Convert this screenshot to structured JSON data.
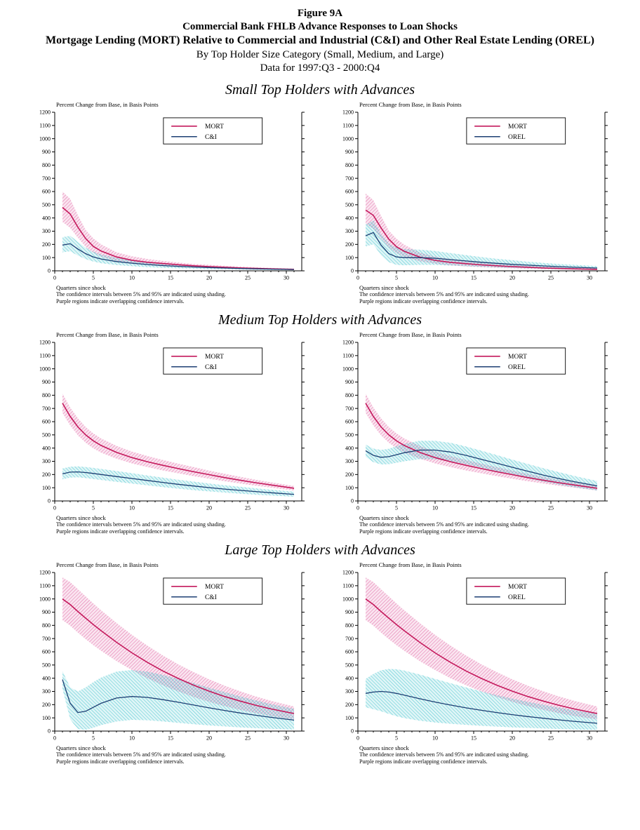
{
  "header": {
    "line1": "Figure 9A",
    "line2": "Commercial Bank FHLB Advance Responses to Loan Shocks",
    "line3": "Mortgage Lending (MORT) Relative to Commercial and Industrial (C&I) and Other Real Estate Lending (OREL)",
    "line4": "By Top Holder Size Category (Small, Medium, and Large)",
    "line5": "Data for 1997:Q3 - 2000:Q4"
  },
  "sections": [
    {
      "title": "Small Top Holders with Advances"
    },
    {
      "title": "Medium Top Holders with Advances"
    },
    {
      "title": "Large Top Holders with Advances"
    }
  ],
  "chart_common": {
    "ylabel_top": "Percent Change from Base, in Basis Points",
    "xlabel": "Quarters since shock",
    "footnote1": "The confidence intervals between 5% and 95% are indicated using shading.",
    "footnote2": "Purple regions indicate overlapping confidence intervals.",
    "ylim": [
      0,
      1200
    ],
    "xlim": [
      0,
      32
    ],
    "yticks": [
      0,
      100,
      200,
      300,
      400,
      500,
      600,
      700,
      800,
      900,
      1000,
      1100,
      1200
    ],
    "xticks": [
      0,
      5,
      10,
      15,
      20,
      25,
      30
    ],
    "grid": false,
    "legend_position": "upper-center-right"
  },
  "colors": {
    "mort_line": "#c4195c",
    "mort_band": "#e05f9f",
    "other_line": "#1d3f73",
    "other_band": "#3ec3cb",
    "overlap_note": "#8a5fa8",
    "axis": "#000000"
  },
  "chart_data": [
    {
      "type": "line",
      "section": "Small Top Holders with Advances",
      "x": [
        1,
        2,
        3,
        4,
        5,
        6,
        8,
        10,
        12,
        14,
        16,
        18,
        20,
        22,
        24,
        26,
        28,
        31
      ],
      "series": [
        {
          "name": "MORT",
          "center": [
            480,
            430,
            330,
            245,
            185,
            150,
            105,
            80,
            65,
            55,
            46,
            38,
            32,
            27,
            22,
            18,
            15,
            11
          ],
          "upper": [
            600,
            545,
            420,
            310,
            245,
            200,
            140,
            110,
            90,
            75,
            62,
            52,
            45,
            38,
            32,
            27,
            22,
            17
          ],
          "lower": [
            370,
            325,
            250,
            182,
            136,
            108,
            74,
            55,
            43,
            35,
            29,
            24,
            20,
            17,
            14,
            11,
            9,
            7
          ]
        },
        {
          "name": "C&I",
          "center": [
            195,
            205,
            165,
            130,
            105,
            90,
            70,
            58,
            48,
            40,
            34,
            29,
            25,
            21,
            18,
            15,
            13,
            10
          ],
          "upper": [
            255,
            265,
            220,
            175,
            145,
            125,
            98,
            82,
            68,
            58,
            49,
            42,
            36,
            31,
            26,
            22,
            19,
            15
          ],
          "lower": [
            140,
            148,
            115,
            88,
            70,
            58,
            44,
            35,
            28,
            23,
            19,
            16,
            13,
            11,
            9,
            8,
            6,
            5
          ]
        }
      ]
    },
    {
      "type": "line",
      "section": "Small Top Holders with Advances",
      "x": [
        1,
        2,
        3,
        4,
        5,
        6,
        8,
        10,
        12,
        14,
        16,
        18,
        20,
        22,
        24,
        26,
        28,
        31
      ],
      "series": [
        {
          "name": "MORT",
          "center": [
            460,
            420,
            325,
            240,
            182,
            148,
            104,
            79,
            64,
            54,
            45,
            38,
            32,
            27,
            22,
            18,
            15,
            11
          ],
          "upper": [
            585,
            535,
            415,
            305,
            242,
            198,
            138,
            108,
            88,
            74,
            61,
            52,
            44,
            38,
            32,
            26,
            22,
            17
          ],
          "lower": [
            355,
            318,
            245,
            178,
            133,
            106,
            72,
            54,
            42,
            34,
            28,
            23,
            19,
            16,
            13,
            11,
            9,
            7
          ]
        },
        {
          "name": "OREL",
          "center": [
            265,
            290,
            195,
            130,
            105,
            100,
            100,
            95,
            85,
            75,
            65,
            57,
            49,
            43,
            37,
            32,
            27,
            21
          ],
          "upper": [
            350,
            380,
            280,
            205,
            175,
            165,
            160,
            150,
            134,
            119,
            104,
            91,
            80,
            69,
            60,
            52,
            45,
            36
          ],
          "lower": [
            185,
            200,
            118,
            65,
            45,
            42,
            45,
            45,
            40,
            35,
            30,
            26,
            22,
            19,
            16,
            13,
            11,
            9
          ]
        }
      ]
    },
    {
      "type": "line",
      "section": "Medium Top Holders with Advances",
      "x": [
        1,
        2,
        3,
        4,
        5,
        6,
        8,
        10,
        12,
        14,
        16,
        18,
        20,
        22,
        24,
        26,
        28,
        31
      ],
      "series": [
        {
          "name": "MORT",
          "center": [
            740,
            640,
            560,
            500,
            455,
            420,
            368,
            328,
            297,
            270,
            245,
            221,
            199,
            177,
            157,
            138,
            121,
            96
          ],
          "upper": [
            812,
            708,
            625,
            560,
            511,
            473,
            417,
            374,
            340,
            310,
            282,
            256,
            230,
            206,
            183,
            161,
            141,
            113
          ],
          "lower": [
            666,
            572,
            496,
            441,
            398,
            366,
            320,
            284,
            256,
            231,
            209,
            188,
            168,
            149,
            132,
            116,
            101,
            79
          ]
        },
        {
          "name": "C&I",
          "center": [
            205,
            218,
            220,
            215,
            208,
            200,
            185,
            170,
            155,
            140,
            126,
            113,
            101,
            90,
            80,
            71,
            62,
            50
          ],
          "upper": [
            246,
            259,
            262,
            257,
            250,
            242,
            226,
            210,
            193,
            177,
            161,
            146,
            132,
            119,
            107,
            96,
            85,
            70
          ],
          "lower": [
            164,
            177,
            179,
            173,
            166,
            159,
            145,
            131,
            118,
            105,
            93,
            82,
            72,
            63,
            55,
            47,
            41,
            32
          ]
        }
      ]
    },
    {
      "type": "line",
      "section": "Medium Top Holders with Advances",
      "x": [
        1,
        2,
        3,
        4,
        5,
        6,
        8,
        10,
        12,
        14,
        16,
        18,
        20,
        22,
        24,
        26,
        28,
        31
      ],
      "series": [
        {
          "name": "MORT",
          "center": [
            740,
            640,
            560,
            500,
            455,
            420,
            368,
            328,
            297,
            270,
            245,
            221,
            199,
            177,
            157,
            138,
            121,
            96
          ],
          "upper": [
            812,
            708,
            625,
            560,
            511,
            473,
            417,
            374,
            340,
            310,
            282,
            256,
            230,
            206,
            183,
            161,
            141,
            113
          ],
          "lower": [
            666,
            572,
            496,
            441,
            398,
            366,
            320,
            284,
            256,
            231,
            209,
            188,
            168,
            149,
            132,
            116,
            101,
            79
          ]
        },
        {
          "name": "OREL",
          "center": [
            380,
            345,
            330,
            335,
            350,
            365,
            385,
            385,
            370,
            345,
            315,
            285,
            255,
            225,
            196,
            170,
            146,
            114
          ],
          "upper": [
            427,
            396,
            386,
            395,
            414,
            432,
            455,
            455,
            440,
            412,
            380,
            347,
            313,
            280,
            248,
            218,
            190,
            151
          ],
          "lower": [
            334,
            294,
            276,
            278,
            289,
            300,
            316,
            316,
            300,
            278,
            252,
            224,
            197,
            171,
            146,
            124,
            104,
            79
          ]
        }
      ]
    },
    {
      "type": "line",
      "section": "Large Top Holders with Advances",
      "x": [
        1,
        2,
        3,
        4,
        5,
        6,
        8,
        10,
        12,
        14,
        16,
        18,
        20,
        22,
        24,
        26,
        28,
        31
      ],
      "series": [
        {
          "name": "MORT",
          "center": [
            1000,
            958,
            905,
            855,
            806,
            760,
            672,
            592,
            520,
            455,
            398,
            347,
            302,
            262,
            227,
            196,
            168,
            133
          ],
          "upper": [
            1163,
            1128,
            1074,
            1020,
            966,
            915,
            818,
            728,
            646,
            572,
            505,
            446,
            392,
            344,
            301,
            263,
            229,
            186
          ],
          "lower": [
            840,
            798,
            745,
            696,
            650,
            608,
            530,
            462,
            400,
            347,
            300,
            258,
            221,
            189,
            161,
            136,
            114,
            88
          ]
        },
        {
          "name": "C&I",
          "center": [
            390,
            210,
            140,
            150,
            180,
            210,
            250,
            262,
            255,
            238,
            218,
            197,
            176,
            156,
            137,
            120,
            104,
            83
          ],
          "upper": [
            455,
            330,
            300,
            330,
            370,
            405,
            450,
            462,
            450,
            425,
            395,
            362,
            328,
            295,
            263,
            233,
            205,
            168
          ],
          "lower": [
            320,
            90,
            15,
            10,
            25,
            45,
            72,
            85,
            82,
            73,
            62,
            52,
            43,
            35,
            28,
            22,
            17,
            11
          ]
        }
      ]
    },
    {
      "type": "line",
      "section": "Large Top Holders with Advances",
      "x": [
        1,
        2,
        3,
        4,
        5,
        6,
        8,
        10,
        12,
        14,
        16,
        18,
        20,
        22,
        24,
        26,
        28,
        31
      ],
      "series": [
        {
          "name": "MORT",
          "center": [
            1000,
            958,
            905,
            855,
            806,
            760,
            672,
            592,
            520,
            455,
            398,
            347,
            302,
            262,
            227,
            196,
            168,
            133
          ],
          "upper": [
            1163,
            1128,
            1074,
            1020,
            966,
            915,
            818,
            728,
            646,
            572,
            505,
            446,
            392,
            344,
            301,
            263,
            229,
            186
          ],
          "lower": [
            840,
            798,
            745,
            696,
            650,
            608,
            530,
            462,
            400,
            347,
            300,
            258,
            221,
            189,
            161,
            136,
            114,
            88
          ]
        },
        {
          "name": "OREL",
          "center": [
            285,
            295,
            300,
            295,
            285,
            272,
            245,
            220,
            197,
            176,
            157,
            140,
            124,
            110,
            97,
            85,
            74,
            59
          ],
          "upper": [
            395,
            432,
            460,
            470,
            468,
            458,
            428,
            395,
            362,
            330,
            300,
            272,
            246,
            222,
            199,
            178,
            158,
            131
          ],
          "lower": [
            180,
            165,
            150,
            130,
            112,
            98,
            78,
            65,
            55,
            47,
            40,
            34,
            28,
            24,
            20,
            16,
            13,
            9
          ]
        }
      ]
    }
  ]
}
